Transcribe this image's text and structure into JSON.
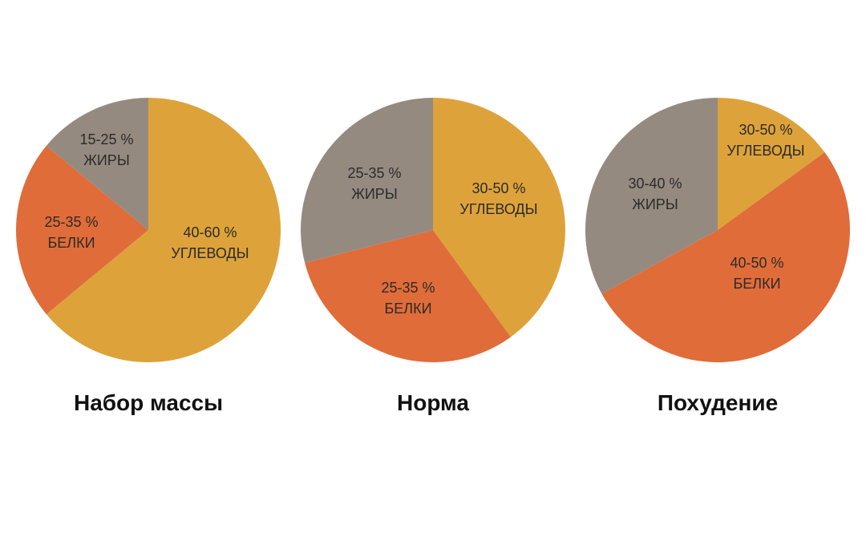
{
  "colors": {
    "fats": "#958a80",
    "proteins": "#e06c39",
    "carbs": "#dda33a",
    "background": "#ffffff"
  },
  "chart_data": [
    {
      "type": "pie",
      "title": "Набор массы",
      "slices": [
        {
          "key": "carbs",
          "range": "40-60 %",
          "label": "УГЛЕВОДЫ",
          "value": 64,
          "color": "#dda33a"
        },
        {
          "key": "proteins",
          "range": "25-35 %",
          "label": "БЕЛКИ",
          "value": 22,
          "color": "#e06c39"
        },
        {
          "key": "fats",
          "range": "15-25 %",
          "label": "ЖИРЫ",
          "value": 14,
          "color": "#958a80"
        }
      ]
    },
    {
      "type": "pie",
      "title": "Норма",
      "slices": [
        {
          "key": "carbs",
          "range": "30-50 %",
          "label": "УГЛЕВОДЫ",
          "value": 40,
          "color": "#dda33a"
        },
        {
          "key": "proteins",
          "range": "25-35 %",
          "label": "БЕЛКИ",
          "value": 31,
          "color": "#e06c39"
        },
        {
          "key": "fats",
          "range": "25-35 %",
          "label": "ЖИРЫ",
          "value": 29,
          "color": "#958a80"
        }
      ]
    },
    {
      "type": "pie",
      "title": "Похудение",
      "slices": [
        {
          "key": "carbs",
          "range": "30-50 %",
          "label": "УГЛЕВОДЫ",
          "value": 15,
          "color": "#dda33a"
        },
        {
          "key": "proteins",
          "range": "40-50 %",
          "label": "БЕЛКИ",
          "value": 52,
          "color": "#e06c39"
        },
        {
          "key": "fats",
          "range": "30-40 %",
          "label": "ЖИРЫ",
          "value": 33,
          "color": "#958a80"
        }
      ]
    }
  ]
}
